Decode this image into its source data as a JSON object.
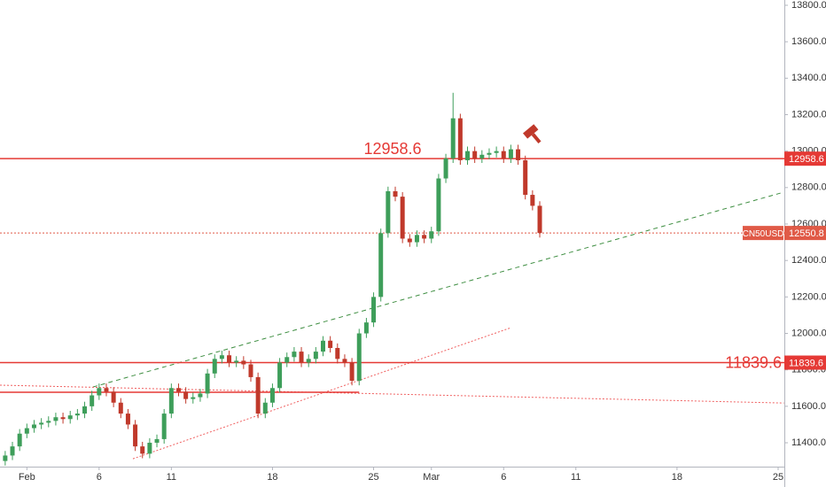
{
  "chart_data": {
    "type": "candlestick",
    "symbol": "CN50USD",
    "up_color": "#3e9e5a",
    "down_color": "#c0392b",
    "grid": false,
    "xlim": [
      -0.86,
      53.43
    ],
    "ylim": [
      11269,
      13829
    ],
    "xticks": [
      {
        "value": 1,
        "label": "Feb"
      },
      6,
      11,
      18,
      25,
      {
        "value": 29,
        "label": "Mar"
      },
      {
        "value": 34,
        "label": "6"
      },
      {
        "value": 39,
        "label": "11"
      },
      {
        "value": 46,
        "label": "18"
      },
      {
        "value": 53,
        "label": "25"
      }
    ],
    "yticks": [
      {
        "value": 11400,
        "label": "11400.0"
      },
      {
        "value": 11600,
        "label": "11600.0"
      },
      {
        "value": 11800,
        "label": "11800.0"
      },
      {
        "value": 12000,
        "label": "12000.0"
      },
      {
        "value": 12200,
        "label": "12200.0"
      },
      {
        "value": 12400,
        "label": "12400.0"
      },
      {
        "value": 12600,
        "label": "12600.0"
      },
      {
        "value": 12800,
        "label": "12800.0"
      },
      {
        "value": 13000,
        "label": "13000.0"
      },
      {
        "value": 13200,
        "label": "13200.0"
      },
      {
        "value": 13400,
        "label": "13400.0"
      },
      {
        "value": 13600,
        "label": "13600.0"
      },
      {
        "value": 13800,
        "label": "13800.0"
      }
    ],
    "x": [
      -0.5,
      0,
      0.5,
      1,
      1.5,
      2,
      2.5,
      3,
      3.5,
      4,
      4.5,
      5,
      5.5,
      6,
      6.5,
      7,
      7.5,
      8,
      8.5,
      9,
      9.5,
      10,
      10.5,
      11,
      11.5,
      12,
      12.5,
      13,
      13.5,
      14,
      14.5,
      15,
      15.5,
      16,
      16.5,
      17,
      17.5,
      18,
      18.5,
      19,
      19.5,
      20,
      20.5,
      21,
      21.5,
      22,
      22.5,
      23,
      23.5,
      24,
      24.5,
      25,
      25.5,
      26,
      26.5,
      27,
      27.5,
      28,
      28.5,
      29,
      29.5,
      30,
      30.5,
      31,
      31.5,
      32,
      32.5,
      33,
      33.5,
      34,
      34.5,
      35,
      35.5,
      36,
      36.5
    ],
    "open": [
      11300,
      11330,
      11380,
      11450,
      11480,
      11500,
      11510,
      11520,
      11540,
      11530,
      11550,
      11560,
      11600,
      11660,
      11700,
      11680,
      11620,
      11560,
      11500,
      11380,
      11340,
      11400,
      11420,
      11560,
      11700,
      11680,
      11640,
      11650,
      11670,
      11780,
      11860,
      11880,
      11840,
      11850,
      11830,
      11760,
      11560,
      11620,
      11700,
      11840,
      11870,
      11900,
      11840,
      11860,
      11900,
      11960,
      11920,
      11860,
      11840,
      11740,
      12000,
      12060,
      12200,
      12550,
      12780,
      12750,
      12520,
      12500,
      12540,
      12520,
      12560,
      12850,
      12960,
      13180,
      12950,
      13000,
      12960,
      12980,
      12990,
      13000,
      12960,
      13010,
      12950,
      12760,
      12700
    ],
    "high": [
      11355,
      11405,
      11475,
      11505,
      11525,
      11535,
      11545,
      11565,
      11565,
      11575,
      11585,
      11625,
      11685,
      11725,
      11725,
      11705,
      11645,
      11585,
      11525,
      11405,
      11425,
      11445,
      11585,
      11725,
      11725,
      11705,
      11675,
      11695,
      11805,
      11885,
      11905,
      11905,
      11875,
      11875,
      11855,
      11785,
      11645,
      11725,
      11865,
      11895,
      11925,
      11925,
      11885,
      11925,
      11985,
      11985,
      11945,
      11885,
      11865,
      12025,
      12085,
      12225,
      12575,
      12805,
      12805,
      12775,
      12545,
      12565,
      12565,
      12585,
      12875,
      12985,
      13320,
      13205,
      13025,
      13025,
      13005,
      13015,
      13025,
      13025,
      13035,
      13035,
      12975,
      12785,
      12725
    ],
    "low": [
      11275,
      11305,
      11355,
      11425,
      11455,
      11475,
      11485,
      11495,
      11505,
      11505,
      11525,
      11535,
      11575,
      11635,
      11655,
      11595,
      11535,
      11475,
      11355,
      11315,
      11315,
      11375,
      11395,
      11535,
      11655,
      11615,
      11615,
      11625,
      11645,
      11755,
      11835,
      11815,
      11815,
      11805,
      11735,
      11535,
      11535,
      11595,
      11675,
      11815,
      11845,
      11815,
      11815,
      11835,
      11875,
      11895,
      11835,
      11815,
      11715,
      11715,
      11975,
      12035,
      12175,
      12525,
      12725,
      12495,
      12475,
      12475,
      12495,
      12495,
      12535,
      12825,
      12935,
      12925,
      12925,
      12935,
      12935,
      12955,
      12965,
      12935,
      12935,
      12925,
      12735,
      12675,
      12525.8
    ],
    "close": [
      11330,
      11380,
      11450,
      11480,
      11500,
      11510,
      11520,
      11540,
      11530,
      11550,
      11560,
      11600,
      11660,
      11700,
      11680,
      11620,
      11560,
      11500,
      11380,
      11340,
      11400,
      11420,
      11560,
      11700,
      11680,
      11640,
      11650,
      11670,
      11780,
      11860,
      11880,
      11840,
      11850,
      11830,
      11760,
      11560,
      11620,
      11700,
      11840,
      11870,
      11900,
      11840,
      11860,
      11900,
      11960,
      11920,
      11860,
      11840,
      11740,
      12000,
      12060,
      12200,
      12550,
      12780,
      12750,
      12520,
      12500,
      12540,
      12520,
      12560,
      12850,
      12960,
      13180,
      12950,
      13000,
      12960,
      12980,
      12990,
      13000,
      12960,
      13010,
      12950,
      12760,
      12700,
      12550.8
    ],
    "hlines": [
      {
        "value": 12958.6,
        "color": "#e53935",
        "style": "solid"
      },
      {
        "value": 11839.6,
        "color": "#e53935",
        "style": "solid"
      },
      {
        "value": 12550.8,
        "color": "#e05a47",
        "style": "dotted"
      }
    ],
    "trendlines": [
      {
        "x": [
          5.58,
          53.4
        ],
        "y": [
          11706,
          12775
        ],
        "color": "#3e8e41",
        "style": "dashed"
      },
      {
        "x": [
          8.34,
          34.5
        ],
        "y": [
          11312,
          12031
        ],
        "color": "#f06060",
        "style": "dotted"
      },
      {
        "x": [
          -0.86,
          53.4
        ],
        "y": [
          11716,
          11618
        ],
        "color": "#f06060",
        "style": "dotted"
      },
      {
        "x": [
          -0.86,
          24
        ],
        "y": [
          11677,
          11677
        ],
        "color": "#e53935",
        "style": "solid"
      }
    ]
  }
}
